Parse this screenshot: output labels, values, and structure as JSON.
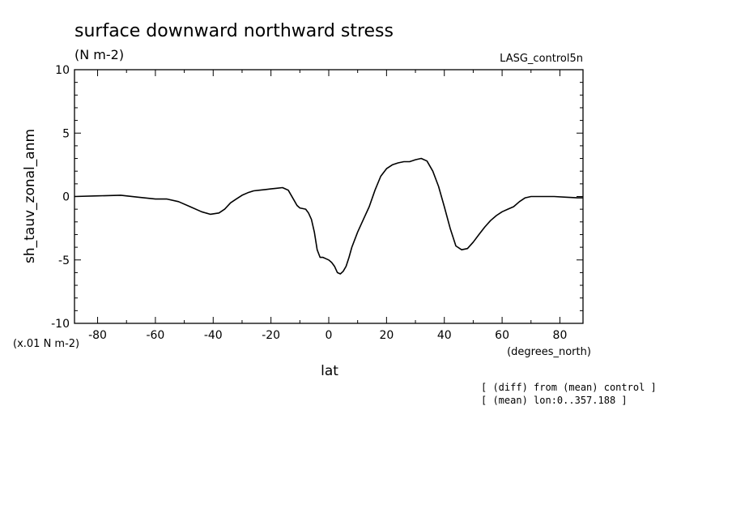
{
  "header": {
    "title": "surface downward northward stress",
    "units": "(N m-2)",
    "run_label": "LASG_control5n"
  },
  "notes": [
    "[ (diff) from (mean) control ]",
    "[ (mean) lon:0..357.188 ]"
  ],
  "chart_data": {
    "type": "line",
    "title": "surface downward northward stress",
    "xlabel": "lat",
    "xunits": "(degrees_north)",
    "ylabel": "sh_tauv_zonal_anm",
    "yunits": "(x.01 N m-2)",
    "xlim": [
      -88,
      88
    ],
    "ylim": [
      -10,
      10
    ],
    "xticks": [
      -80,
      -60,
      -40,
      -20,
      0,
      20,
      40,
      60,
      80
    ],
    "xtick_labels": [
      "-80",
      "-60",
      "-40",
      "-20",
      "0",
      "20",
      "40",
      "60",
      "80"
    ],
    "yticks": [
      -10,
      -5,
      0,
      5,
      10
    ],
    "ytick_labels": [
      "-10",
      "-5",
      "0",
      "5",
      "10"
    ],
    "grid": false,
    "line_color": "#000000",
    "series": [
      {
        "x": [
          -88,
          -80,
          -72,
          -66,
          -60,
          -56,
          -52,
          -48,
          -44,
          -41,
          -38,
          -36,
          -34,
          -32,
          -30,
          -28,
          -26,
          -24,
          -22,
          -20,
          -18,
          -16,
          -15,
          -14,
          -12,
          -11,
          -10,
          -8,
          -7,
          -6,
          -5,
          -4,
          -3,
          -2,
          -1,
          0,
          1,
          2,
          3,
          4,
          5,
          6,
          7,
          8,
          10,
          12,
          14,
          16,
          18,
          20,
          22,
          24,
          26,
          28,
          30,
          32,
          34,
          36,
          38,
          40,
          42,
          44,
          46,
          48,
          50,
          52,
          54,
          56,
          58,
          60,
          62,
          64,
          66,
          68,
          70,
          74,
          78,
          82,
          86,
          88
        ],
        "y": [
          0.0,
          0.05,
          0.1,
          -0.05,
          -0.2,
          -0.2,
          -0.4,
          -0.8,
          -1.2,
          -1.4,
          -1.3,
          -1.0,
          -0.5,
          -0.2,
          0.1,
          0.3,
          0.45,
          0.5,
          0.55,
          0.6,
          0.65,
          0.7,
          0.6,
          0.5,
          -0.3,
          -0.7,
          -0.9,
          -1.0,
          -1.3,
          -1.8,
          -2.8,
          -4.2,
          -4.8,
          -4.8,
          -4.9,
          -5.0,
          -5.2,
          -5.5,
          -6.0,
          -6.1,
          -5.9,
          -5.5,
          -4.8,
          -4.0,
          -2.8,
          -1.8,
          -0.8,
          0.5,
          1.6,
          2.2,
          2.5,
          2.65,
          2.75,
          2.75,
          2.9,
          3.0,
          2.8,
          2.0,
          0.8,
          -0.8,
          -2.5,
          -3.9,
          -4.2,
          -4.1,
          -3.6,
          -3.0,
          -2.4,
          -1.9,
          -1.5,
          -1.2,
          -1.0,
          -0.8,
          -0.4,
          -0.1,
          0.0,
          0.0,
          0.0,
          -0.05,
          -0.1,
          -0.1
        ]
      }
    ]
  }
}
